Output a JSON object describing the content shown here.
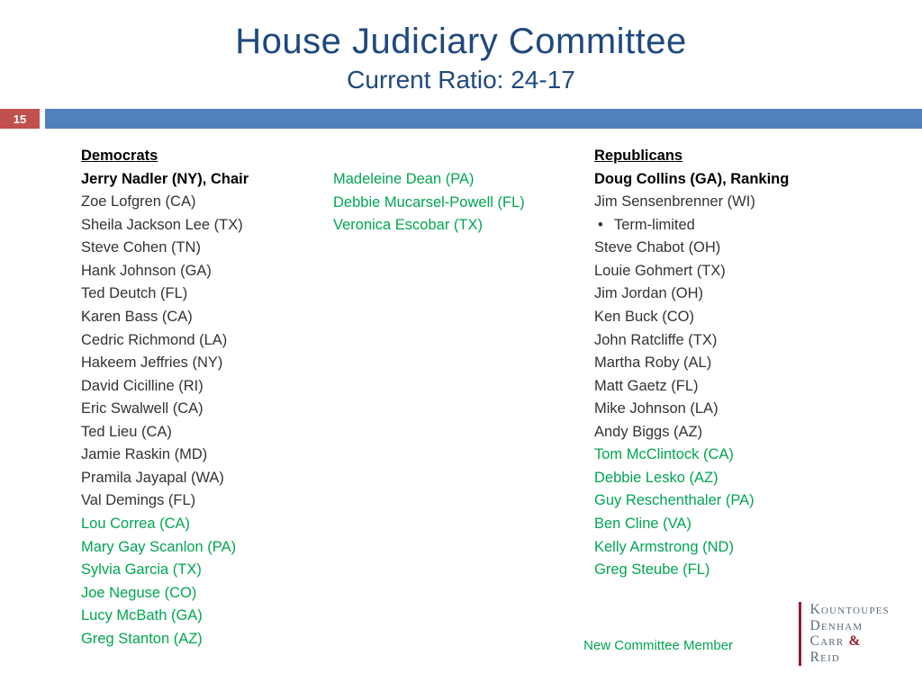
{
  "page_number": "15",
  "title": "House Judiciary Committee",
  "subtitle": "Current Ratio: 24-17",
  "colors": {
    "title": "#1f497d",
    "accent_bar": "#4f81bd",
    "page_badge": "#c0504d",
    "new_member": "#00a651",
    "logo_bar": "#9a1b2f",
    "logo_text": "#5a6a7a"
  },
  "democrats": {
    "header": "Democrats",
    "lead": "Jerry Nadler (NY), Chair",
    "col1": [
      {
        "name": "Zoe Lofgren (CA)",
        "new": false
      },
      {
        "name": "Sheila Jackson Lee (TX)",
        "new": false
      },
      {
        "name": "Steve Cohen (TN)",
        "new": false
      },
      {
        "name": "Hank Johnson (GA)",
        "new": false
      },
      {
        "name": "Ted Deutch (FL)",
        "new": false
      },
      {
        "name": "Karen Bass (CA)",
        "new": false
      },
      {
        "name": "Cedric Richmond (LA)",
        "new": false
      },
      {
        "name": "Hakeem Jeffries (NY)",
        "new": false
      },
      {
        "name": "David Cicilline (RI)",
        "new": false
      },
      {
        "name": "Eric Swalwell (CA)",
        "new": false
      },
      {
        "name": "Ted Lieu (CA)",
        "new": false
      },
      {
        "name": "Jamie Raskin (MD)",
        "new": false
      },
      {
        "name": "Pramila Jayapal (WA)",
        "new": false
      },
      {
        "name": "Val Demings (FL)",
        "new": false
      },
      {
        "name": "Lou Correa (CA)",
        "new": true
      },
      {
        "name": "Mary Gay Scanlon (PA)",
        "new": true
      },
      {
        "name": "Sylvia Garcia (TX)",
        "new": true
      },
      {
        "name": "Joe Neguse (CO)",
        "new": true
      },
      {
        "name": "Lucy McBath (GA)",
        "new": true
      },
      {
        "name": "Greg Stanton (AZ)",
        "new": true
      }
    ],
    "col2": [
      {
        "name": "Madeleine Dean (PA)",
        "new": true
      },
      {
        "name": "Debbie Mucarsel-Powell (FL)",
        "new": true
      },
      {
        "name": "Veronica Escobar (TX)",
        "new": true
      }
    ]
  },
  "republicans": {
    "header": "Republicans",
    "lead": "Doug Collins (GA), Ranking",
    "members": [
      {
        "name": "Jim Sensenbrenner (WI)",
        "new": false,
        "note": "Term-limited"
      },
      {
        "name": "Steve Chabot (OH)",
        "new": false
      },
      {
        "name": "Louie Gohmert (TX)",
        "new": false
      },
      {
        "name": "Jim Jordan (OH)",
        "new": false
      },
      {
        "name": "Ken Buck (CO)",
        "new": false
      },
      {
        "name": "John Ratcliffe (TX)",
        "new": false
      },
      {
        "name": "Martha Roby (AL)",
        "new": false
      },
      {
        "name": "Matt Gaetz (FL)",
        "new": false
      },
      {
        "name": "Mike Johnson (LA)",
        "new": false
      },
      {
        "name": "Andy Biggs (AZ)",
        "new": false
      },
      {
        "name": "Tom McClintock (CA)",
        "new": true
      },
      {
        "name": "Debbie Lesko (AZ)",
        "new": true
      },
      {
        "name": "Guy Reschenthaler (PA)",
        "new": true
      },
      {
        "name": "Ben Cline (VA)",
        "new": true
      },
      {
        "name": "Kelly Armstrong (ND)",
        "new": true
      },
      {
        "name": "Greg Steube (FL)",
        "new": true
      }
    ]
  },
  "legend": "New Committee Member",
  "logo": {
    "line1": "Kountoupes",
    "line2": "Denham",
    "line3a": "Carr",
    "line3b": "&",
    "line4": "Reid"
  }
}
